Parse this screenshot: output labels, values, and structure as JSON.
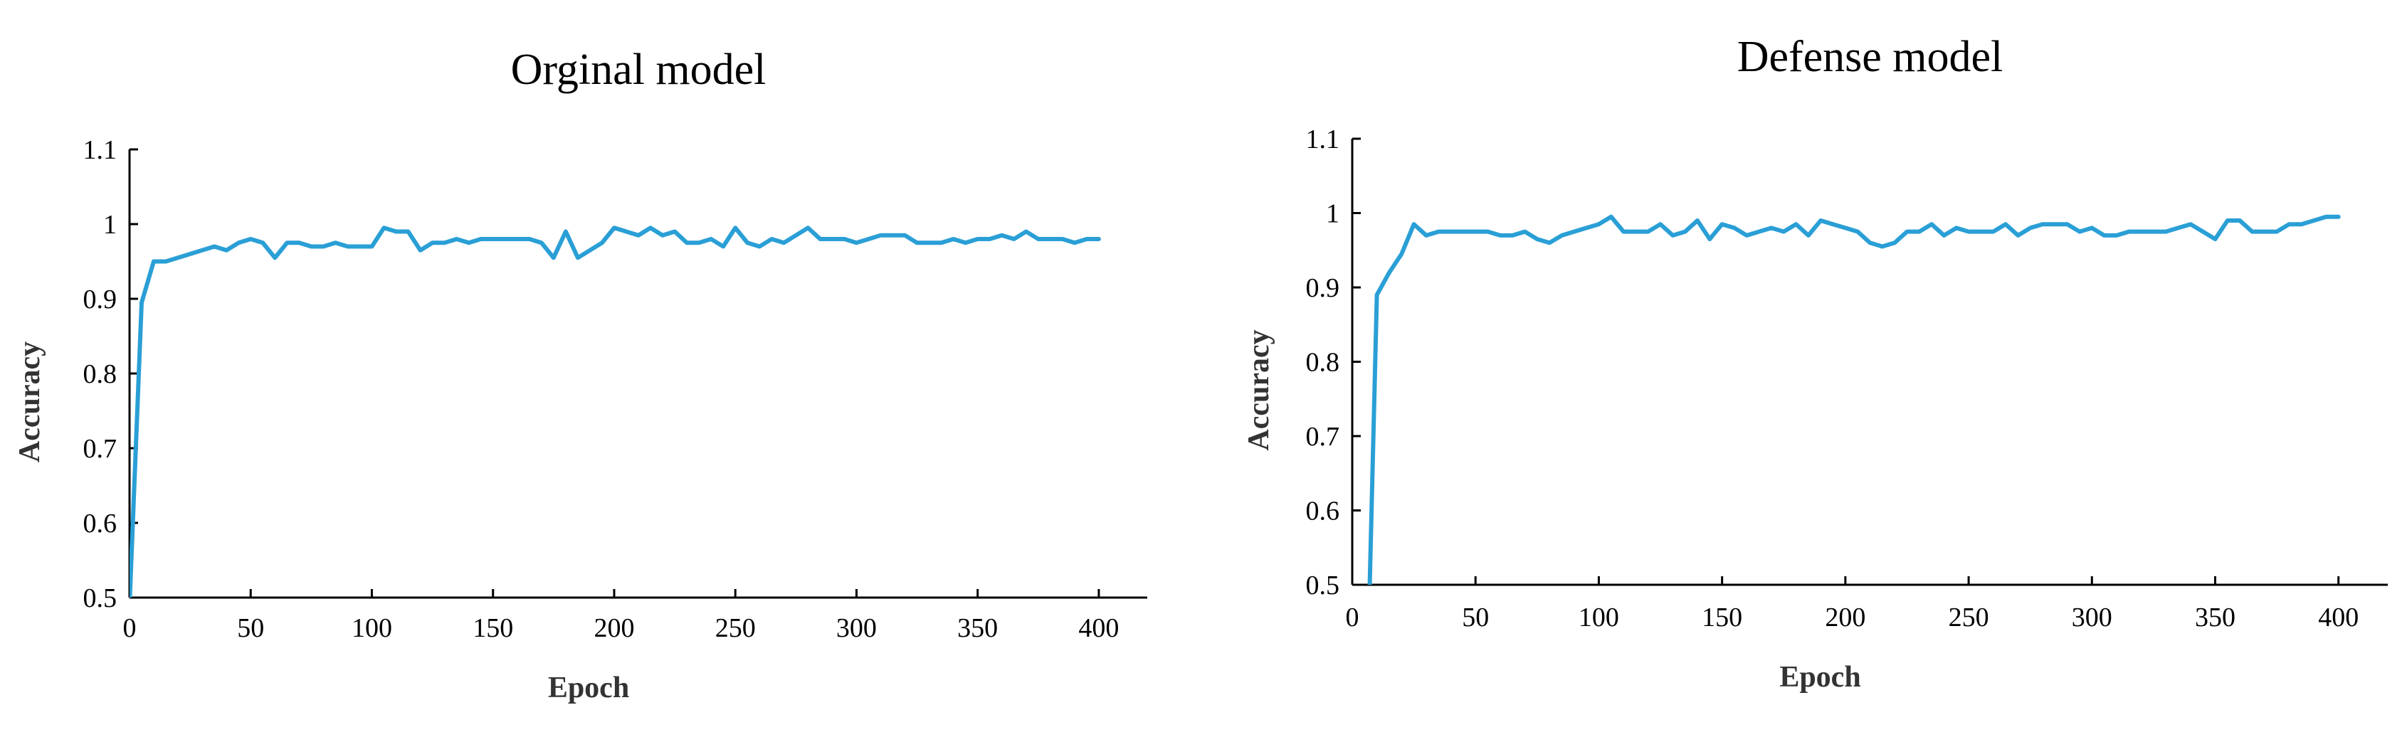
{
  "chart_data": [
    {
      "type": "line",
      "title": "Orginal model",
      "xlabel": "Epoch",
      "ylabel": "Accuracy",
      "xlim": [
        0,
        420
      ],
      "ylim": [
        0.5,
        1.1
      ],
      "x_ticks": [
        "0",
        "50",
        "100",
        "150",
        "200",
        "250",
        "300",
        "350",
        "400"
      ],
      "y_ticks": [
        "0.5",
        "0.6",
        "0.7",
        "0.8",
        "0.9",
        "1",
        "1.1"
      ],
      "grid": false,
      "color": "#2a9fd6",
      "series": [
        {
          "x": [
            0,
            5,
            10,
            15,
            20,
            25,
            30,
            35,
            40,
            45,
            50,
            55,
            60,
            65,
            70,
            75,
            80,
            85,
            90,
            95,
            100,
            105,
            110,
            115,
            120,
            125,
            130,
            135,
            140,
            145,
            150,
            155,
            160,
            165,
            170,
            175,
            180,
            185,
            190,
            195,
            200,
            205,
            210,
            215,
            220,
            225,
            230,
            235,
            240,
            245,
            250,
            255,
            260,
            265,
            270,
            275,
            280,
            285,
            290,
            295,
            300,
            305,
            310,
            315,
            320,
            325,
            330,
            335,
            340,
            345,
            350,
            355,
            360,
            365,
            370,
            375,
            380,
            385,
            390,
            395,
            400
          ],
          "y": [
            0.49,
            0.895,
            0.95,
            0.95,
            0.955,
            0.96,
            0.965,
            0.97,
            0.965,
            0.975,
            0.98,
            0.975,
            0.955,
            0.975,
            0.975,
            0.97,
            0.97,
            0.975,
            0.97,
            0.97,
            0.97,
            0.995,
            0.99,
            0.99,
            0.965,
            0.975,
            0.975,
            0.98,
            0.975,
            0.98,
            0.98,
            0.98,
            0.98,
            0.98,
            0.975,
            0.955,
            0.99,
            0.955,
            0.965,
            0.975,
            0.995,
            0.99,
            0.985,
            0.995,
            0.985,
            0.99,
            0.975,
            0.975,
            0.98,
            0.97,
            0.995,
            0.975,
            0.97,
            0.98,
            0.975,
            0.985,
            0.995,
            0.98,
            0.98,
            0.98,
            0.975,
            0.98,
            0.985,
            0.985,
            0.985,
            0.975,
            0.975,
            0.975,
            0.98,
            0.975,
            0.98,
            0.98,
            0.985,
            0.98,
            0.99,
            0.98,
            0.98,
            0.98,
            0.975,
            0.98,
            0.98
          ]
        }
      ]
    },
    {
      "type": "line",
      "title": "Defense model",
      "xlabel": "Epoch",
      "ylabel": "Accuracy",
      "xlim": [
        0,
        420
      ],
      "ylim": [
        0.5,
        1.1
      ],
      "x_ticks": [
        "0",
        "50",
        "100",
        "150",
        "200",
        "250",
        "300",
        "350",
        "400"
      ],
      "y_ticks": [
        "0.5",
        "0.6",
        "0.7",
        "0.8",
        "0.9",
        "1",
        "1.1"
      ],
      "grid": false,
      "color": "#2a9fd6",
      "series": [
        {
          "x": [
            7,
            10,
            15,
            20,
            25,
            30,
            35,
            40,
            45,
            50,
            55,
            60,
            65,
            70,
            75,
            80,
            85,
            90,
            95,
            100,
            105,
            110,
            115,
            120,
            125,
            130,
            135,
            140,
            145,
            150,
            155,
            160,
            165,
            170,
            175,
            180,
            185,
            190,
            195,
            200,
            205,
            210,
            215,
            220,
            225,
            230,
            235,
            240,
            245,
            250,
            255,
            260,
            265,
            270,
            275,
            280,
            285,
            290,
            295,
            300,
            305,
            310,
            315,
            320,
            325,
            330,
            335,
            340,
            345,
            350,
            355,
            360,
            365,
            370,
            375,
            380,
            385,
            390,
            395,
            400
          ],
          "y": [
            0.49,
            0.89,
            0.92,
            0.945,
            0.985,
            0.97,
            0.975,
            0.975,
            0.975,
            0.975,
            0.975,
            0.97,
            0.97,
            0.975,
            0.965,
            0.96,
            0.97,
            0.975,
            0.98,
            0.985,
            0.995,
            0.975,
            0.975,
            0.975,
            0.985,
            0.97,
            0.975,
            0.99,
            0.965,
            0.985,
            0.98,
            0.97,
            0.975,
            0.98,
            0.975,
            0.985,
            0.97,
            0.99,
            0.985,
            0.98,
            0.975,
            0.96,
            0.955,
            0.96,
            0.975,
            0.975,
            0.985,
            0.97,
            0.98,
            0.975,
            0.975,
            0.975,
            0.985,
            0.97,
            0.98,
            0.985,
            0.985,
            0.985,
            0.975,
            0.98,
            0.97,
            0.97,
            0.975,
            0.975,
            0.975,
            0.975,
            0.98,
            0.985,
            0.975,
            0.965,
            0.99,
            0.99,
            0.975,
            0.975,
            0.975,
            0.985,
            0.985,
            0.99,
            0.995,
            0.995
          ]
        }
      ]
    }
  ]
}
